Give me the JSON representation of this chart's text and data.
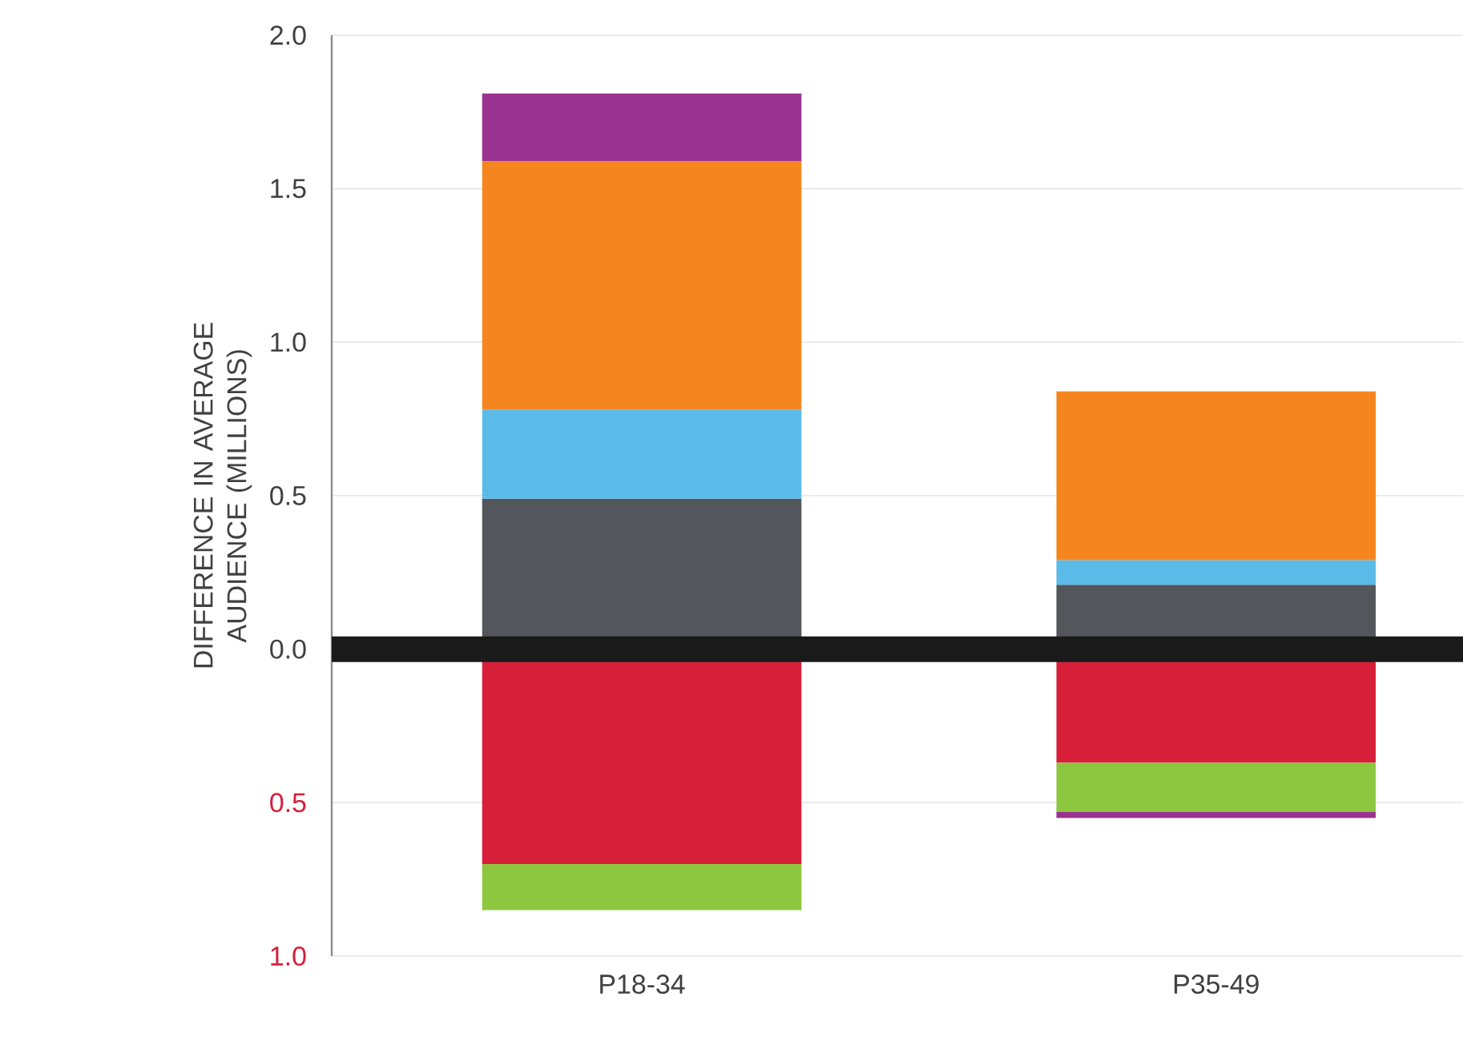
{
  "chart_data": {
    "type": "bar",
    "stacked": true,
    "ylabel": "DIFFERENCE IN AVERAGE AUDIENCE (MILLIONS)",
    "categories": [
      "P18-34",
      "P35-49"
    ],
    "series": [
      {
        "color": "#53565a",
        "values": [
          0.49,
          0.21
        ]
      },
      {
        "color": "#5bbbe8",
        "values": [
          0.29,
          0.08
        ]
      },
      {
        "color": "#f5861f",
        "values": [
          0.81,
          0.55
        ]
      },
      {
        "color": "#d71f3a",
        "values": [
          -0.7,
          -0.37
        ]
      },
      {
        "color": "#8dc63f",
        "values": [
          -0.15,
          -0.16
        ]
      },
      {
        "color": "#9b3390",
        "values": [
          0.22,
          -0.02
        ]
      }
    ],
    "ylim": [
      -1,
      2
    ],
    "yticks": [
      {
        "value": -1,
        "label": "1.0"
      },
      {
        "value": -0.5,
        "label": "0.5"
      },
      {
        "value": 0,
        "label": "0.0"
      },
      0.5,
      {
        "value": 1,
        "label": "1.0"
      },
      1.5,
      {
        "value": 2,
        "label": "2.0"
      }
    ],
    "grid": "y",
    "ref_lines": [
      {
        "axis": "y",
        "value": 0,
        "color": "#1a1a1a"
      }
    ]
  }
}
